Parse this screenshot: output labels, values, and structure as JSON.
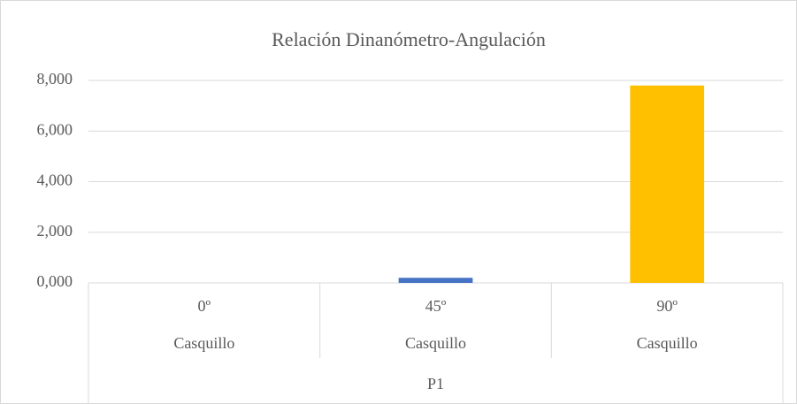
{
  "chart_data": {
    "type": "bar",
    "title": "Relación Dinanómetro-Angulación",
    "categories": [
      "0º",
      "45º",
      "90º"
    ],
    "category_groups": [
      "Casquillo",
      "Casquillo",
      "Casquillo"
    ],
    "outer_group": "P1",
    "values": [
      0,
      0.2,
      7.8
    ],
    "colors": [
      "#ed7d31",
      "#4472c4",
      "#ffc000"
    ],
    "ylim": [
      0,
      8
    ],
    "yticks": [
      {
        "value": 0,
        "label": "0,000"
      },
      {
        "value": 2,
        "label": "2,000"
      },
      {
        "value": 4,
        "label": "4,000"
      },
      {
        "value": 6,
        "label": "6,000"
      },
      {
        "value": 8,
        "label": "8,000"
      }
    ],
    "grid": true
  }
}
